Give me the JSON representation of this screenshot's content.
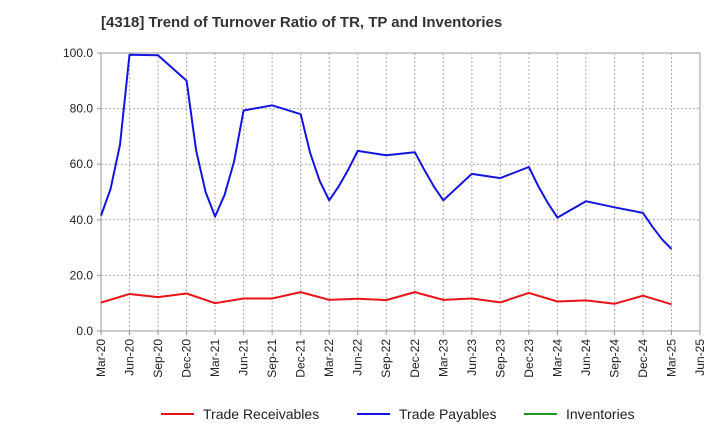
{
  "chart_data": {
    "type": "line",
    "title": "[4318]  Trend of Turnover Ratio of TR, TP and Inventories",
    "xlabel": "",
    "ylabel": "",
    "ylim": [
      0,
      100
    ],
    "yticks": [
      "0.0",
      "20.0",
      "40.0",
      "60.0",
      "80.0",
      "100.0"
    ],
    "xticks": [
      "Mar-20",
      "Jun-20",
      "Sep-20",
      "Dec-20",
      "Mar-21",
      "Jun-21",
      "Sep-21",
      "Dec-21",
      "Mar-22",
      "Jun-22",
      "Sep-22",
      "Dec-22",
      "Mar-23",
      "Jun-23",
      "Sep-23",
      "Dec-23",
      "Mar-24",
      "Jun-24",
      "Sep-24",
      "Dec-24",
      "Mar-25",
      "Jun-25"
    ],
    "grid": true,
    "legend_position": "bottom",
    "series": [
      {
        "name": "Trade Receivables",
        "color": "#e8141a",
        "points": [
          [
            0,
            10.2
          ],
          [
            3,
            13.3
          ],
          [
            6,
            12.2
          ],
          [
            9,
            13.5
          ],
          [
            12,
            10.0
          ],
          [
            15,
            11.7
          ],
          [
            18,
            11.7
          ],
          [
            21,
            14.0
          ],
          [
            24,
            11.2
          ],
          [
            27,
            11.6
          ],
          [
            30,
            11.1
          ],
          [
            33,
            14.0
          ],
          [
            36,
            11.2
          ],
          [
            39,
            11.7
          ],
          [
            42,
            10.3
          ],
          [
            45,
            13.7
          ],
          [
            48,
            10.6
          ],
          [
            51,
            11.0
          ],
          [
            54,
            9.8
          ],
          [
            57,
            12.7
          ],
          [
            60,
            9.6
          ]
        ]
      },
      {
        "name": "Trade Payables",
        "color": "#1414e0",
        "points": [
          [
            0,
            41.5
          ],
          [
            1,
            51
          ],
          [
            2,
            67
          ],
          [
            3,
            99.4
          ],
          [
            6,
            99.2
          ],
          [
            9,
            90
          ],
          [
            10,
            65
          ],
          [
            11,
            50
          ],
          [
            12,
            41.2
          ],
          [
            13,
            49
          ],
          [
            14,
            61
          ],
          [
            15,
            79.3
          ],
          [
            18,
            81.2
          ],
          [
            21,
            78
          ],
          [
            22,
            64
          ],
          [
            23,
            54
          ],
          [
            24,
            47
          ],
          [
            25,
            52
          ],
          [
            26,
            58
          ],
          [
            27,
            64.8
          ],
          [
            30,
            63.2
          ],
          [
            33,
            64.3
          ],
          [
            34,
            58
          ],
          [
            35,
            52
          ],
          [
            36,
            47
          ],
          [
            39,
            56.5
          ],
          [
            42,
            55
          ],
          [
            45,
            59
          ],
          [
            46,
            52
          ],
          [
            47,
            46
          ],
          [
            48,
            40.8
          ],
          [
            51,
            46.7
          ],
          [
            54,
            44.5
          ],
          [
            57,
            42.5
          ],
          [
            58,
            37.5
          ],
          [
            59,
            33
          ],
          [
            60,
            29.5
          ]
        ]
      },
      {
        "name": "Inventories",
        "color": "#1a9a1a",
        "points": []
      }
    ]
  }
}
